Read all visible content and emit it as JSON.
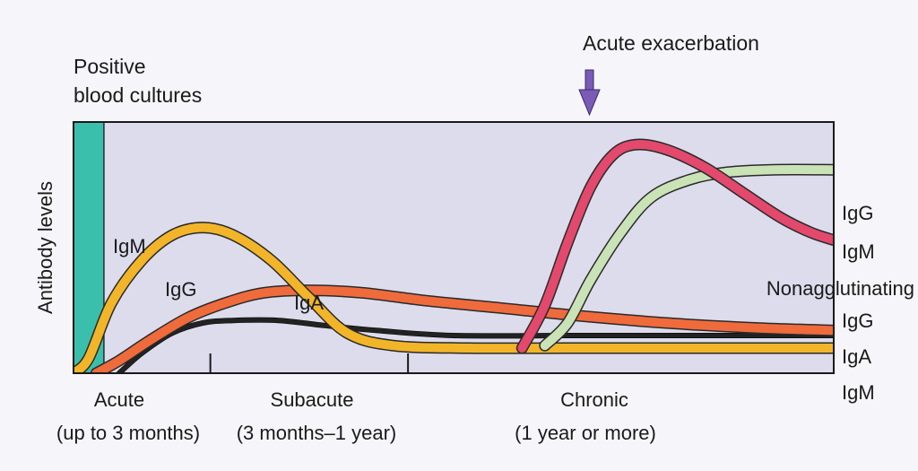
{
  "chart_data": {
    "type": "line",
    "ylabel": "Antibody levels",
    "annotations": {
      "blood_cultures": [
        "Positive",
        "blood cultures"
      ],
      "exacerbation": "Acute exacerbation"
    },
    "phases": [
      {
        "name": "Acute",
        "range": "(up to 3 months)"
      },
      {
        "name": "Subacute",
        "range": "(3 months–1 year)"
      },
      {
        "name": "Chronic",
        "range": "(1 year or more)"
      }
    ],
    "x_range": [
      0,
      100
    ],
    "y_range": [
      0,
      100
    ],
    "x_units": "percent of timeline",
    "y_units": "relative antibody level",
    "shaded_region": {
      "x_start": 0,
      "x_end": 4,
      "color": "#3bbfad"
    },
    "phase_boundaries": [
      18,
      44
    ],
    "exacerbation_x": 67,
    "series": [
      {
        "name": "IgM",
        "group": "initial",
        "color": "#f2b529",
        "edge": "#2a2a2a",
        "points": [
          [
            0,
            0
          ],
          [
            2,
            6
          ],
          [
            5,
            28
          ],
          [
            9,
            45
          ],
          [
            13,
            55
          ],
          [
            17,
            58
          ],
          [
            21,
            55
          ],
          [
            26,
            45
          ],
          [
            31,
            30
          ],
          [
            36,
            16
          ],
          [
            42,
            11
          ],
          [
            52,
            10
          ],
          [
            65,
            10
          ],
          [
            80,
            10
          ],
          [
            100,
            10
          ]
        ]
      },
      {
        "name": "IgG",
        "group": "initial",
        "color": "#ef6b3c",
        "edge": "#2a2a2a",
        "points": [
          [
            3,
            0
          ],
          [
            6,
            5
          ],
          [
            10,
            13
          ],
          [
            15,
            22
          ],
          [
            20,
            28
          ],
          [
            25,
            32
          ],
          [
            31,
            33
          ],
          [
            38,
            32
          ],
          [
            46,
            29
          ],
          [
            56,
            26
          ],
          [
            66,
            23
          ],
          [
            78,
            20
          ],
          [
            90,
            18
          ],
          [
            100,
            17
          ]
        ]
      },
      {
        "name": "IgA",
        "group": "initial",
        "color": "#222222",
        "edge": "#000000",
        "points": [
          [
            6,
            0
          ],
          [
            9,
            8
          ],
          [
            13,
            16
          ],
          [
            17,
            20
          ],
          [
            21,
            21
          ],
          [
            27,
            21
          ],
          [
            33,
            19
          ],
          [
            40,
            17
          ],
          [
            50,
            15
          ],
          [
            65,
            15
          ],
          [
            80,
            15
          ],
          [
            100,
            15
          ]
        ]
      },
      {
        "name": "IgG",
        "group": "chronic",
        "color": "#c9e3b6",
        "edge": "#2a2a2a",
        "points": [
          [
            62,
            11
          ],
          [
            65,
            20
          ],
          [
            68,
            37
          ],
          [
            72,
            56
          ],
          [
            76,
            70
          ],
          [
            81,
            77
          ],
          [
            86,
            80
          ],
          [
            92,
            81
          ],
          [
            100,
            81
          ]
        ]
      },
      {
        "name": "IgM",
        "group": "chronic",
        "color": "#e2496c",
        "edge": "#2a2a2a",
        "points": [
          [
            59,
            10
          ],
          [
            62,
            27
          ],
          [
            65,
            52
          ],
          [
            68,
            74
          ],
          [
            71,
            87
          ],
          [
            74,
            91
          ],
          [
            78,
            89
          ],
          [
            83,
            82
          ],
          [
            88,
            72
          ],
          [
            93,
            62
          ],
          [
            97,
            56
          ],
          [
            100,
            53
          ]
        ]
      }
    ],
    "right_labels": {
      "chronic_group": [
        "IgG",
        "IgM"
      ],
      "group_title": "Nonagglutinating",
      "initial_group": [
        "IgG",
        "IgA",
        "IgM"
      ]
    },
    "inline_labels": [
      "IgM",
      "IgG",
      "IgA"
    ]
  }
}
